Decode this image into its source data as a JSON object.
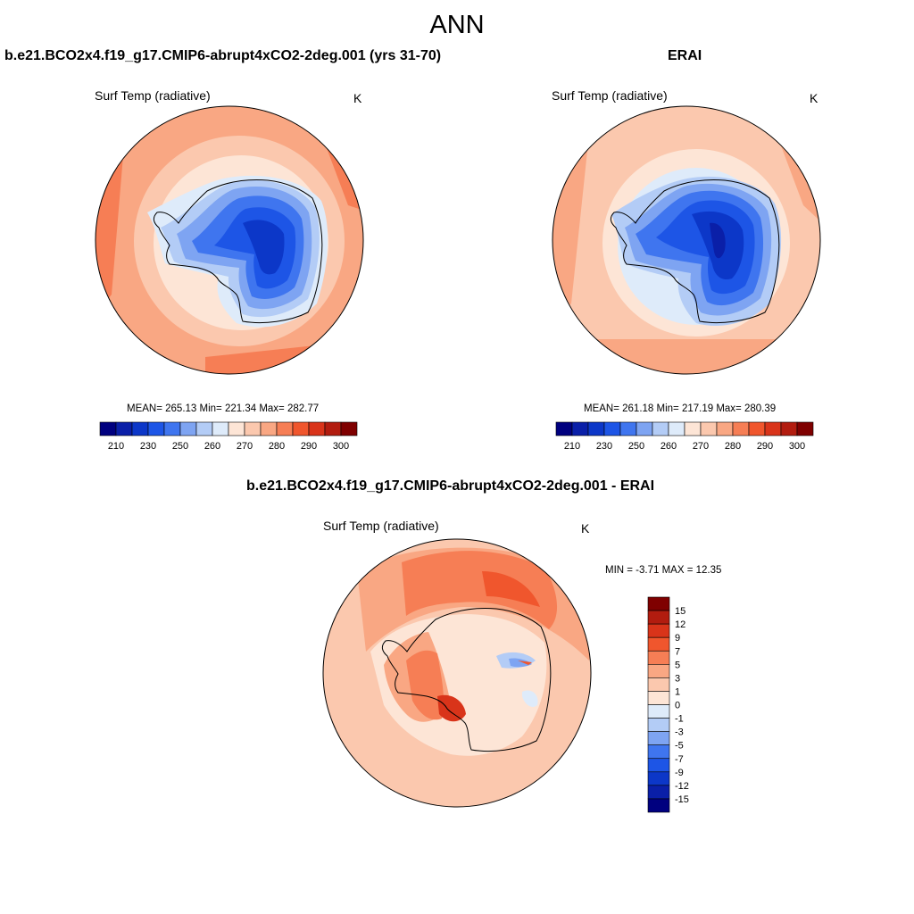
{
  "title": "ANN",
  "panels": [
    {
      "title": "b.e21.BCO2x4.f19_g17.CMIP6-abrupt4xCO2-2deg.001 (yrs 31-70)",
      "variable": "Surf Temp (radiative)",
      "units": "K",
      "stats": {
        "label": "MEAN= 265.13  Min= 221.34  Max= 282.77"
      },
      "colorbar_ticks": [
        "210",
        "230",
        "250",
        "260",
        "270",
        "280",
        "290",
        "300"
      ]
    },
    {
      "title": "ERAI",
      "variable": "Surf Temp (radiative)",
      "units": "K",
      "stats": {
        "label": "MEAN= 261.18  Min= 217.19  Max= 280.39"
      },
      "colorbar_ticks": [
        "210",
        "230",
        "250",
        "260",
        "270",
        "280",
        "290",
        "300"
      ]
    },
    {
      "title": "b.e21.BCO2x4.f19_g17.CMIP6-abrupt4xCO2-2deg.001 - ERAI",
      "variable": "Surf Temp (radiative)",
      "units": "K",
      "stats": {
        "label": "MIN =  -3.71 MAX =  12.35"
      },
      "colorbar_ticks": [
        "15",
        "12",
        "9",
        "7",
        "5",
        "3",
        "1",
        "0",
        "-1",
        "-3",
        "-5",
        "-7",
        "-9",
        "-12",
        "-15"
      ]
    }
  ],
  "colors": {
    "abs_scale": [
      "#00007f",
      "#0a1fa8",
      "#0c37c8",
      "#1d55e6",
      "#3f75ef",
      "#7ea4f2",
      "#b3ccf6",
      "#deebfa",
      "#fde5d6",
      "#fbc8ae",
      "#f9a783",
      "#f67e55",
      "#f0562d",
      "#d9341a",
      "#b21c0f",
      "#7f0000"
    ],
    "diff_scale": [
      "#00007f",
      "#0a1fa8",
      "#0c37c8",
      "#1d55e6",
      "#3f75ef",
      "#7ea4f2",
      "#b3ccf6",
      "#deebfa",
      "#fde5d6",
      "#fbc8ae",
      "#f9a783",
      "#f67e55",
      "#f0562d",
      "#d9341a",
      "#b21c0f",
      "#7f0000"
    ]
  }
}
